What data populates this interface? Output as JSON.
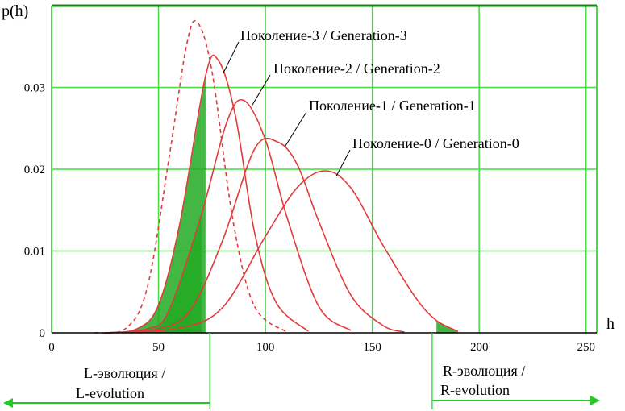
{
  "chart_data": {
    "type": "line",
    "title": "",
    "xlabel": "h",
    "ylabel": "p(h)",
    "xlim": [
      0,
      255
    ],
    "ylim": [
      0,
      0.04
    ],
    "x_ticks": [
      "0",
      "50",
      "100",
      "150",
      "200",
      "250"
    ],
    "y_ticks": [
      "0",
      "0.01",
      "0.02",
      "0.03"
    ],
    "grid": true,
    "series": [
      {
        "name": "Поколение-0 / Generation-0",
        "style": "solid",
        "x": [
          30,
          60,
          80,
          100,
          115,
          128,
          140,
          155,
          170,
          180,
          190
        ],
        "y": [
          0,
          0.0006,
          0.0031,
          0.0118,
          0.0178,
          0.0198,
          0.0177,
          0.0107,
          0.0044,
          0.0015,
          0.0002
        ]
      },
      {
        "name": "Поколение-1 / Generation-1",
        "style": "solid",
        "x": [
          25,
          50,
          65,
          80,
          95,
          106,
          115,
          125,
          140,
          155,
          165
        ],
        "y": [
          0,
          0.0005,
          0.0028,
          0.0113,
          0.0225,
          0.0233,
          0.0205,
          0.0136,
          0.0046,
          0.0009,
          0.0001
        ]
      },
      {
        "name": "Поколение-2 / Generation-2",
        "style": "solid",
        "x": [
          25,
          45,
          55,
          70,
          82,
          90,
          100,
          110,
          125,
          140
        ],
        "y": [
          0,
          0.0005,
          0.0028,
          0.0144,
          0.0258,
          0.0284,
          0.0236,
          0.0142,
          0.0032,
          0.0003
        ]
      },
      {
        "name": "Поколение-3 / Generation-3",
        "style": "solid",
        "x": [
          25,
          40,
          50,
          60,
          72,
          78,
          86,
          95,
          105,
          120
        ],
        "y": [
          0,
          0.0005,
          0.0034,
          0.0134,
          0.0314,
          0.0333,
          0.0265,
          0.0122,
          0.0037,
          0.0002
        ]
      },
      {
        "name": "",
        "style": "dashed",
        "x": [
          20,
          35,
          45,
          55,
          63,
          68,
          75,
          85,
          95,
          110
        ],
        "y": [
          0,
          0.0006,
          0.0058,
          0.0215,
          0.035,
          0.038,
          0.032,
          0.0135,
          0.0032,
          0.0001
        ]
      }
    ],
    "curve_labels": [
      {
        "text": "Поколение-3 / Generation-3",
        "series": 3
      },
      {
        "text": "Поколение-2 / Generation-2",
        "series": 2
      },
      {
        "text": "Поколение-1 / Generation-1",
        "series": 1
      },
      {
        "text": "Поколение-0 / Generation-0",
        "series": 0
      }
    ],
    "evolution": {
      "left": {
        "line1": "L-эволюция /",
        "line2": "L-evolution",
        "boundary_h": 74
      },
      "right": {
        "line1": "R-эволюция /",
        "line2": "R-evolution",
        "boundary_h": 178
      }
    },
    "colors": {
      "curve": "#e23b3b",
      "grid": "#44dd44",
      "arrow": "#22cc22",
      "fill": "#22aa22",
      "frame_top": "#118811"
    }
  }
}
